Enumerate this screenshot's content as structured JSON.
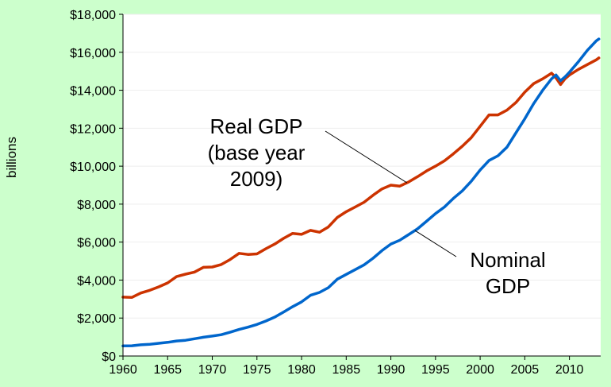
{
  "chart_data": {
    "type": "line",
    "title": "",
    "xlabel": "",
    "ylabel": "billions",
    "xlim": [
      1960,
      2013.5
    ],
    "ylim": [
      0,
      18000
    ],
    "x_ticks": [
      1960,
      1965,
      1970,
      1975,
      1980,
      1985,
      1990,
      1995,
      2000,
      2005,
      2010
    ],
    "y_ticks": [
      0,
      2000,
      4000,
      6000,
      8000,
      10000,
      12000,
      14000,
      16000,
      18000
    ],
    "y_tick_labels": [
      "$0",
      "$2,000",
      "$4,000",
      "$6,000",
      "$8,000",
      "$10,000",
      "$12,000",
      "$14,000",
      "$16,000",
      "$18,000"
    ],
    "grid": "horizontal",
    "legend": "none",
    "series": [
      {
        "key": "real",
        "color": "#cc3300",
        "x": [
          1960,
          1961,
          1962,
          1963,
          1964,
          1965,
          1966,
          1967,
          1968,
          1969,
          1970,
          1971,
          1972,
          1973,
          1974,
          1975,
          1976,
          1977,
          1978,
          1979,
          1980,
          1981,
          1982,
          1983,
          1984,
          1985,
          1986,
          1987,
          1988,
          1989,
          1990,
          1991,
          1992,
          1993,
          1994,
          1995,
          1996,
          1997,
          1998,
          1999,
          2000,
          2001,
          2002,
          2003,
          2004,
          2005,
          2006,
          2007,
          2008,
          2008.5,
          2009,
          2009.5,
          2010,
          2011,
          2012,
          2013,
          2013.3
        ],
        "values": [
          3100,
          3090,
          3320,
          3460,
          3640,
          3850,
          4180,
          4310,
          4420,
          4670,
          4690,
          4820,
          5080,
          5410,
          5350,
          5380,
          5650,
          5900,
          6200,
          6460,
          6410,
          6620,
          6520,
          6800,
          7300,
          7600,
          7850,
          8100,
          8470,
          8800,
          9000,
          8950,
          9170,
          9450,
          9750,
          10000,
          10280,
          10650,
          11050,
          11500,
          12100,
          12700,
          12700,
          12950,
          13350,
          13900,
          14350,
          14600,
          14900,
          14650,
          14300,
          14600,
          14800,
          15100,
          15350,
          15600,
          15700
        ]
      },
      {
        "key": "nominal",
        "color": "#0066cc",
        "x": [
          1960,
          1961,
          1962,
          1963,
          1964,
          1965,
          1966,
          1967,
          1968,
          1969,
          1970,
          1971,
          1972,
          1973,
          1974,
          1975,
          1976,
          1977,
          1978,
          1979,
          1980,
          1981,
          1982,
          1983,
          1984,
          1985,
          1986,
          1987,
          1988,
          1989,
          1990,
          1991,
          1992,
          1993,
          1994,
          1995,
          1996,
          1997,
          1998,
          1999,
          2000,
          2001,
          2002,
          2003,
          2004,
          2005,
          2006,
          2007,
          2008,
          2008.5,
          2009,
          2009.5,
          2010,
          2011,
          2012,
          2013,
          2013.3
        ],
        "values": [
          530,
          540,
          590,
          620,
          670,
          720,
          790,
          830,
          910,
          990,
          1050,
          1120,
          1250,
          1400,
          1520,
          1660,
          1840,
          2050,
          2320,
          2600,
          2850,
          3200,
          3350,
          3600,
          4050,
          4300,
          4550,
          4800,
          5150,
          5550,
          5900,
          6100,
          6400,
          6700,
          7100,
          7500,
          7850,
          8300,
          8700,
          9200,
          9800,
          10300,
          10550,
          11000,
          11750,
          12500,
          13300,
          14000,
          14600,
          14800,
          14500,
          14700,
          14950,
          15500,
          16100,
          16600,
          16700
        ]
      }
    ],
    "annotations": [
      {
        "key": "real",
        "lines": [
          "Real GDP",
          "(base year",
          "2009)"
        ]
      },
      {
        "key": "nominal",
        "lines": [
          "Nominal",
          "GDP"
        ]
      }
    ]
  }
}
